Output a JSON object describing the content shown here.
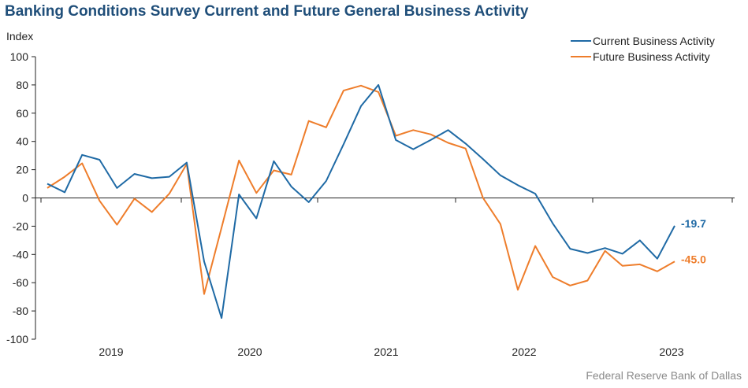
{
  "chart_data": {
    "type": "line",
    "title": "Banking Conditions Survey Current and Future General Business Activity",
    "ylabel": "Index",
    "ylim": [
      -100,
      100
    ],
    "yticks": [
      100,
      80,
      60,
      40,
      20,
      0,
      -20,
      -40,
      -60,
      -80,
      -100
    ],
    "xticks": [
      "2019",
      "2020",
      "2021",
      "2022",
      "2023"
    ],
    "series": [
      {
        "name": "Current Business Activity",
        "color": "#1f6aa5",
        "values": [
          10.0,
          4.0,
          30.5,
          27.0,
          7.0,
          17.0,
          14.0,
          15.0,
          25.0,
          -45.0,
          -85.0,
          2.5,
          -14.5,
          26.0,
          8.0,
          -3.0,
          12.0,
          38.0,
          65.0,
          80.0,
          41.0,
          34.5,
          41.0,
          48.0,
          38.5,
          27.5,
          16.0,
          9.0,
          3.0,
          -18.0,
          -36.0,
          -39.0,
          -35.5,
          -39.5,
          -30.0,
          -43.0,
          -19.7
        ]
      },
      {
        "name": "Future Business Activity",
        "color": "#ee7d2b",
        "values": [
          7.0,
          15.0,
          24.5,
          -2.0,
          -19.0,
          -0.5,
          -10.0,
          3.0,
          24.0,
          -68.0,
          -21.0,
          26.5,
          3.5,
          19.5,
          16.5,
          54.5,
          50.0,
          76.0,
          79.5,
          75.0,
          44.0,
          48.0,
          45.0,
          39.0,
          35.0,
          0.0,
          -18.5,
          -65.0,
          -34.0,
          -56.0,
          -62.0,
          -58.5,
          -37.5,
          -48.0,
          -47.0,
          -52.0,
          -45.0
        ]
      }
    ],
    "end_labels": [
      "-19.7",
      "-45.0"
    ],
    "legend_position": "top-right",
    "grid": false,
    "source": "Federal Reserve Bank of Dallas"
  }
}
